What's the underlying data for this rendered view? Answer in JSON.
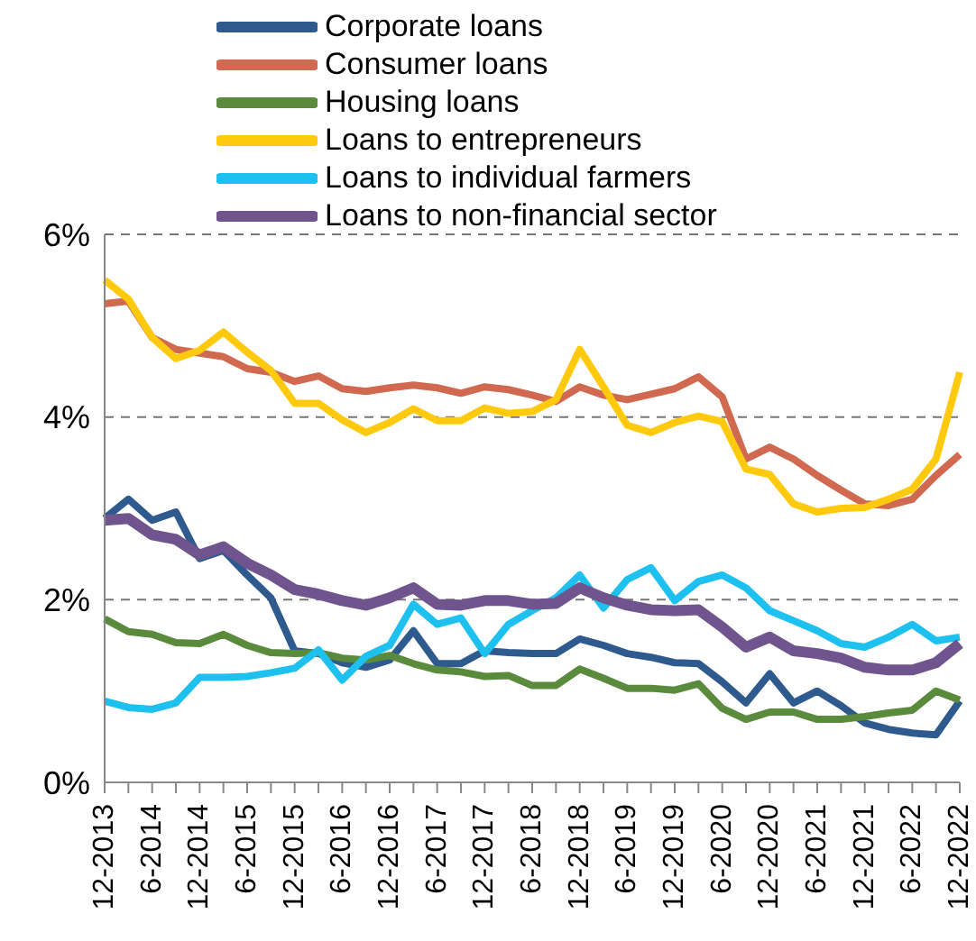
{
  "chart_data": {
    "type": "line",
    "categories": [
      "12-2013",
      null,
      "6-2014",
      null,
      "12-2014",
      null,
      "6-2015",
      null,
      "12-2015",
      null,
      "6-2016",
      null,
      "12-2016",
      null,
      "6-2017",
      null,
      "12-2017",
      null,
      "6-2018",
      null,
      "12-2018",
      null,
      "6-2019",
      null,
      "12-2019",
      null,
      "6-2020",
      null,
      "12-2020",
      null,
      "6-2021",
      null,
      "12-2021",
      null,
      "6-2022",
      null,
      "12-2022"
    ],
    "series": [
      {
        "name": "Corporate loans",
        "color": "#2e5a8e",
        "values": [
          2.89,
          3.1,
          2.87,
          2.96,
          2.45,
          2.54,
          2.27,
          2.02,
          1.44,
          1.41,
          1.31,
          1.26,
          1.34,
          1.66,
          1.3,
          1.3,
          1.44,
          1.42,
          1.41,
          1.41,
          1.57,
          1.5,
          1.41,
          1.37,
          1.31,
          1.3,
          1.1,
          0.87,
          1.19,
          0.87,
          1.0,
          0.84,
          0.65,
          0.58,
          0.54,
          0.52,
          0.89
        ]
      },
      {
        "name": "Consumer loans",
        "color": "#d0694f",
        "values": [
          5.24,
          5.27,
          4.87,
          4.74,
          4.7,
          4.66,
          4.53,
          4.49,
          4.39,
          4.45,
          4.31,
          4.28,
          4.32,
          4.35,
          4.32,
          4.26,
          4.33,
          4.3,
          4.24,
          4.17,
          4.33,
          4.24,
          4.19,
          4.25,
          4.31,
          4.44,
          4.22,
          3.54,
          3.67,
          3.54,
          3.36,
          3.2,
          3.05,
          3.03,
          3.1,
          3.36,
          3.59
        ]
      },
      {
        "name": "Housing loans",
        "color": "#5a8a3c",
        "values": [
          1.79,
          1.65,
          1.62,
          1.53,
          1.52,
          1.62,
          1.5,
          1.42,
          1.41,
          1.42,
          1.36,
          1.34,
          1.39,
          1.3,
          1.23,
          1.21,
          1.16,
          1.17,
          1.06,
          1.06,
          1.24,
          1.14,
          1.03,
          1.03,
          1.01,
          1.08,
          0.81,
          0.69,
          0.77,
          0.77,
          0.69,
          0.69,
          0.72,
          0.76,
          0.79,
          1.0,
          0.9
        ]
      },
      {
        "name": "Loans to entrepreneurs",
        "color": "#ffc90e",
        "values": [
          5.5,
          5.29,
          4.87,
          4.64,
          4.73,
          4.93,
          4.71,
          4.51,
          4.15,
          4.15,
          3.97,
          3.83,
          3.94,
          4.09,
          3.96,
          3.96,
          4.1,
          4.04,
          4.06,
          4.19,
          4.74,
          4.33,
          3.91,
          3.83,
          3.94,
          4.01,
          3.95,
          3.43,
          3.37,
          3.05,
          2.96,
          3.0,
          3.01,
          3.1,
          3.21,
          3.54,
          4.49
        ]
      },
      {
        "name": "Loans to individual farmers",
        "color": "#1ec0ef",
        "values": [
          0.89,
          0.82,
          0.8,
          0.87,
          1.15,
          1.15,
          1.16,
          1.2,
          1.25,
          1.45,
          1.12,
          1.38,
          1.5,
          1.95,
          1.73,
          1.8,
          1.41,
          1.73,
          1.88,
          2.02,
          2.27,
          1.91,
          2.22,
          2.35,
          1.99,
          2.2,
          2.27,
          2.13,
          1.88,
          1.77,
          1.66,
          1.52,
          1.48,
          1.59,
          1.73,
          1.55,
          1.59
        ]
      },
      {
        "name": "Loans to non-financial sector",
        "color": "#6f548e",
        "values": [
          2.87,
          2.89,
          2.71,
          2.66,
          2.49,
          2.58,
          2.4,
          2.27,
          2.11,
          2.06,
          1.99,
          1.94,
          2.02,
          2.13,
          1.95,
          1.94,
          1.99,
          1.99,
          1.95,
          1.96,
          2.13,
          2.02,
          1.94,
          1.89,
          1.88,
          1.89,
          1.7,
          1.48,
          1.59,
          1.44,
          1.41,
          1.36,
          1.26,
          1.23,
          1.23,
          1.31,
          1.52
        ]
      }
    ],
    "ylim": [
      0,
      6
    ],
    "yticks": [
      {
        "value": 0,
        "label": "0%"
      },
      {
        "value": 2,
        "label": "2%"
      },
      {
        "value": 4,
        "label": "4%"
      },
      {
        "value": 6,
        "label": "6%"
      }
    ],
    "grid": "y",
    "legend": "top",
    "marker": "none",
    "line_style": "solid"
  }
}
